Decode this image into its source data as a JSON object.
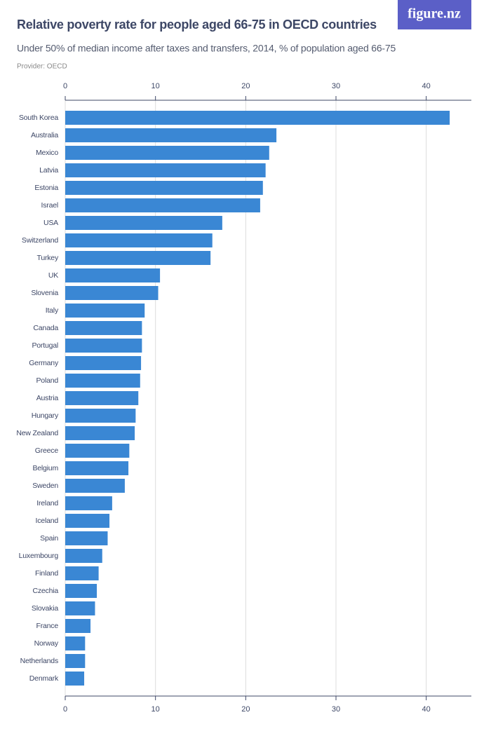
{
  "chart_data": {
    "type": "bar",
    "orientation": "horizontal",
    "title": "Relative poverty rate for people aged 66-75 in OECD countries",
    "subtitle": "Under 50% of median income after taxes and transfers, 2014, % of population aged 66-75",
    "provider": "Provider: OECD",
    "logo": "figure.nz",
    "categories": [
      "South Korea",
      "Australia",
      "Mexico",
      "Latvia",
      "Estonia",
      "Israel",
      "USA",
      "Switzerland",
      "Turkey",
      "UK",
      "Slovenia",
      "Italy",
      "Canada",
      "Portugal",
      "Germany",
      "Poland",
      "Austria",
      "Hungary",
      "New Zealand",
      "Greece",
      "Belgium",
      "Sweden",
      "Ireland",
      "Iceland",
      "Spain",
      "Luxembourg",
      "Finland",
      "Czechia",
      "Slovakia",
      "France",
      "Norway",
      "Netherlands",
      "Denmark"
    ],
    "values": [
      42.6,
      23.4,
      22.6,
      22.2,
      21.9,
      21.6,
      17.4,
      16.3,
      16.1,
      10.5,
      10.3,
      8.8,
      8.5,
      8.5,
      8.4,
      8.3,
      8.1,
      7.8,
      7.7,
      7.1,
      7.0,
      6.6,
      5.2,
      4.9,
      4.7,
      4.1,
      3.7,
      3.5,
      3.3,
      2.8,
      2.2,
      2.2,
      2.1
    ],
    "color": "#3a87d4",
    "xlim": [
      0,
      45
    ],
    "xticks": [
      0,
      10,
      20,
      30,
      40
    ],
    "grid": true
  }
}
